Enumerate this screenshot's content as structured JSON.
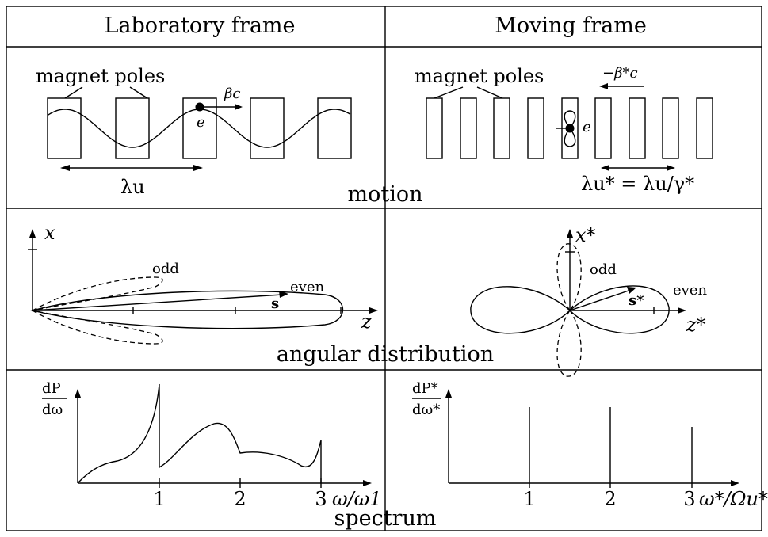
{
  "headers": {
    "left": "Laboratory frame",
    "right": "Moving frame"
  },
  "rows": {
    "motion": "motion",
    "angular": "angular distribution",
    "spectrum": "spectrum"
  },
  "motion": {
    "left_magnets": "magnet poles",
    "right_magnets": "magnet poles",
    "beta_c": "βc",
    "minus_beta_c": "−β*c",
    "electron_left": "e",
    "electron_right": "e",
    "lambda_u": "λu",
    "lambda_u_star": "λu* = λu/γ*"
  },
  "angular": {
    "left_x_axis": "x",
    "left_z_axis": "z",
    "left_odd": "odd",
    "left_even": "even",
    "left_s": "s",
    "right_x_axis": "x*",
    "right_z_axis": "z*",
    "right_odd": "odd",
    "right_even": "even",
    "right_s": "s*"
  },
  "spectrum": {
    "left_ylabel_num": "dP",
    "left_ylabel_den": "dω",
    "left_xlabel": "ω/ω1",
    "left_ticks": [
      "1",
      "2",
      "3"
    ],
    "right_ylabel_num": "dP*",
    "right_ylabel_den": "dω*",
    "right_xlabel": "ω*/Ωu*",
    "right_ticks": [
      "1",
      "2",
      "3"
    ]
  }
}
